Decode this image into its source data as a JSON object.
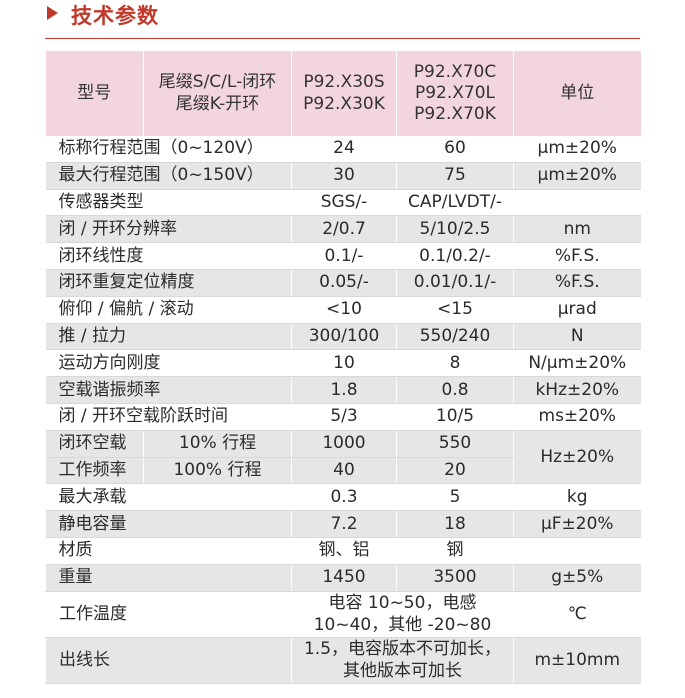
{
  "section": {
    "title": "技术参数"
  },
  "header": {
    "col_model": "型号",
    "col_tail_1": "尾缀S/C/L-闭环",
    "col_tail_2": "尾缀K-开环",
    "col_a_1": "P92.X30S",
    "col_a_2": "P92.X30K",
    "col_b_1": "P92.X70C",
    "col_b_2": "P92.X70L",
    "col_b_3": "P92.X70K",
    "col_unit": "单位"
  },
  "rows": [
    {
      "label": "标称行程范围（0~120V）",
      "a": "24",
      "b": "60",
      "unit": "μm±20%"
    },
    {
      "label": "最大行程范围（0~150V）",
      "a": "30",
      "b": "75",
      "unit": "μm±20%"
    },
    {
      "label": "传感器类型",
      "a": "SGS/-",
      "b": "CAP/LVDT/-",
      "unit": ""
    },
    {
      "label": "闭 / 开环分辨率",
      "a": "2/0.7",
      "b": "5/10/2.5",
      "unit": "nm"
    },
    {
      "label": "闭环线性度",
      "a": "0.1/-",
      "b": "0.1/0.2/-",
      "unit": "%F.S."
    },
    {
      "label": "闭环重复定位精度",
      "a": "0.05/-",
      "b": "0.01/0.1/-",
      "unit": "%F.S."
    },
    {
      "label": "俯仰 / 偏航 / 滚动",
      "a": "<10",
      "b": "<15",
      "unit": "μrad"
    },
    {
      "label": "推 / 拉力",
      "a": "300/100",
      "b": "550/240",
      "unit": "N"
    },
    {
      "label": "运动方向刚度",
      "a": "10",
      "b": "8",
      "unit": "N/μm±20%"
    },
    {
      "label": "空载谐振频率",
      "a": "1.8",
      "b": "0.8",
      "unit": "kHz±20%"
    },
    {
      "label": "闭 / 开环空载阶跃时间",
      "a": "5/3",
      "b": "10/5",
      "unit": "ms±20%"
    }
  ],
  "freq_block": {
    "label_1": "闭环空载",
    "label_2": "工作频率",
    "sub_1": "10% 行程",
    "sub_2": "100% 行程",
    "a_1": "1000",
    "b_1": "550",
    "a_2": "40",
    "b_2": "20",
    "unit": "Hz±20%"
  },
  "rows2": [
    {
      "label": "最大承载",
      "a": "0.3",
      "b": "5",
      "unit": "kg"
    },
    {
      "label": "静电容量",
      "a": "7.2",
      "b": "18",
      "unit": "μF±20%"
    },
    {
      "label": "材质",
      "a": "钢、铝",
      "b": "钢",
      "unit": ""
    },
    {
      "label": "重量",
      "a": "1450",
      "b": "3500",
      "unit": "g±5%"
    }
  ],
  "temp": {
    "label": "工作温度",
    "value_1": "电容 10~50，电感",
    "value_2": "10~40，其他 -20~80",
    "unit": "℃"
  },
  "cable": {
    "label": "出线长",
    "value_1": "1.5，电容版本不可加长，",
    "value_2": "其他版本可加长",
    "unit": "m±10mm"
  }
}
